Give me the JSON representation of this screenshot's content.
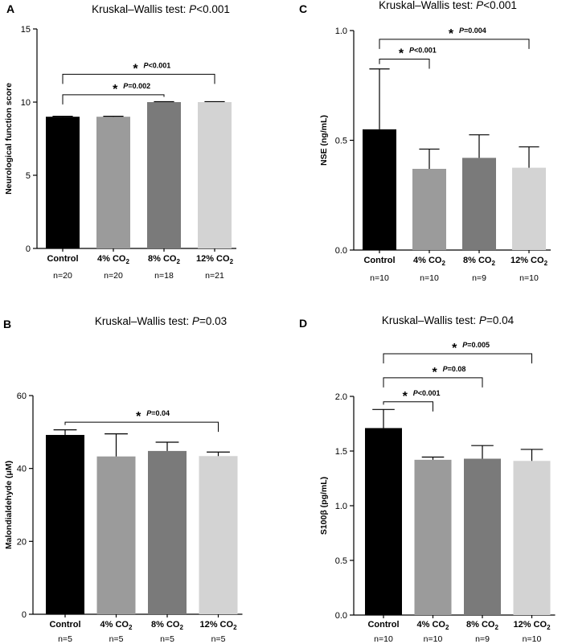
{
  "chart_data": [
    {
      "id": "A",
      "type": "bar",
      "title_prefix": "Kruskal–Wallis test: ",
      "title_p": "P",
      "title_suffix": "<0.001",
      "ylabel": "Neurological function score",
      "ylim": [
        0,
        15
      ],
      "yticks": [
        0,
        5,
        10,
        15
      ],
      "categories": [
        "Control",
        "4% CO",
        "8% CO",
        "12% CO"
      ],
      "subscripts": [
        "",
        "2",
        "2",
        "2"
      ],
      "n_labels": [
        "n=20",
        "n=20",
        "n=18",
        "n=21"
      ],
      "values": [
        9.0,
        9.0,
        10.0,
        10.0
      ],
      "errors": [
        0.03,
        0.03,
        0.03,
        0.03
      ],
      "colors": [
        "#000000",
        "#9b9b9b",
        "#7a7a7a",
        "#d3d3d3"
      ],
      "comparisons": [
        {
          "from": 0,
          "to": 2,
          "y": 10.5,
          "label": "=0.002"
        },
        {
          "from": 0,
          "to": 3,
          "y": 11.9,
          "label": "<0.001"
        }
      ]
    },
    {
      "id": "C",
      "type": "bar",
      "title_prefix": "Kruskal–Wallis test: ",
      "title_p": "P",
      "title_suffix": "<0.001",
      "ylabel": "NSE (ng/mL)",
      "ylim": [
        0,
        1.0
      ],
      "yticks": [
        0.0,
        0.5,
        1.0
      ],
      "categories": [
        "Control",
        "4% CO",
        "8% CO",
        "12% CO"
      ],
      "subscripts": [
        "",
        "2",
        "2",
        "2"
      ],
      "n_labels": [
        "n=10",
        "n=10",
        "n=9",
        "n=10"
      ],
      "values": [
        0.55,
        0.37,
        0.42,
        0.375
      ],
      "errors": [
        0.275,
        0.09,
        0.105,
        0.095
      ],
      "colors": [
        "#000000",
        "#9b9b9b",
        "#7a7a7a",
        "#d3d3d3"
      ],
      "comparisons": [
        {
          "from": 0,
          "to": 1,
          "y": 0.87,
          "label": "<0.001"
        },
        {
          "from": 0,
          "to": 3,
          "y": 0.96,
          "label": "=0.004"
        }
      ]
    },
    {
      "id": "B",
      "type": "bar",
      "title_prefix": "Kruskal–Wallis test: ",
      "title_p": "P",
      "title_suffix": "=0.03",
      "ylabel": "Malondialdehyde (μM)",
      "ylim": [
        0,
        60
      ],
      "yticks": [
        0,
        20,
        40,
        60
      ],
      "categories": [
        "Control",
        "4% CO",
        "8% CO",
        "12% CO"
      ],
      "subscripts": [
        "",
        "2",
        "2",
        "2"
      ],
      "n_labels": [
        "n=5",
        "n=5",
        "n=5",
        "n=5"
      ],
      "values": [
        49.2,
        43.3,
        44.8,
        43.4
      ],
      "errors": [
        1.4,
        6.2,
        2.4,
        1.1
      ],
      "colors": [
        "#000000",
        "#9b9b9b",
        "#7a7a7a",
        "#d3d3d3"
      ],
      "comparisons": [
        {
          "from": 0,
          "to": 3,
          "y": 52.7,
          "label": "=0.04"
        }
      ]
    },
    {
      "id": "D",
      "type": "bar",
      "title_prefix": "Kruskal–Wallis test: ",
      "title_p": "P",
      "title_suffix": "=0.04",
      "ylabel": "S100β (pg/mL)",
      "ylim": [
        0,
        2.0
      ],
      "yticks": [
        0.0,
        0.5,
        1.0,
        1.5,
        2.0
      ],
      "categories": [
        "Control",
        "4% CO",
        "8% CO",
        "12% CO"
      ],
      "subscripts": [
        "",
        "2",
        "2",
        "2"
      ],
      "n_labels": [
        "n=10",
        "n=10",
        "n=9",
        "n=10"
      ],
      "values": [
        1.71,
        1.42,
        1.43,
        1.41
      ],
      "errors": [
        0.17,
        0.025,
        0.12,
        0.105
      ],
      "colors": [
        "#000000",
        "#9b9b9b",
        "#7a7a7a",
        "#d3d3d3"
      ],
      "comparisons": [
        {
          "from": 0,
          "to": 1,
          "y": 1.95,
          "label": "<0.001"
        },
        {
          "from": 0,
          "to": 2,
          "y": 2.17,
          "label": "=0.08"
        },
        {
          "from": 0,
          "to": 3,
          "y": 2.39,
          "label": "=0.005"
        }
      ]
    }
  ]
}
